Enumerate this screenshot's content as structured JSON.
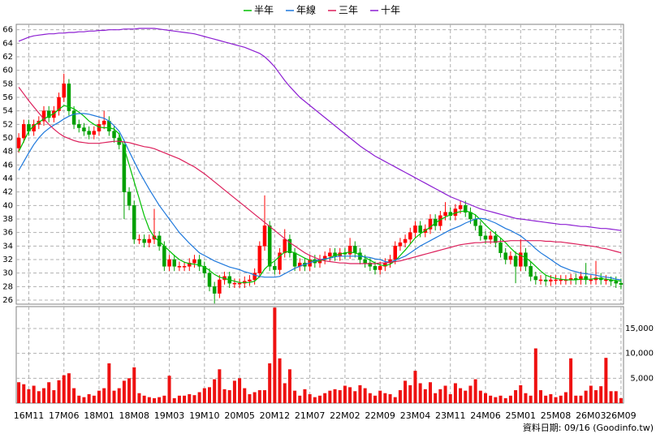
{
  "chart_data": {
    "type": "candlestick",
    "legend_position": "top",
    "grid": true,
    "up_color": "#ff0000",
    "down_color": "#00a000",
    "source": "資料日期: 09/16 (Goodinfo.tw)",
    "categories": [
      null,
      null,
      "16M11",
      null,
      null,
      null,
      null,
      null,
      null,
      "17M06",
      null,
      null,
      null,
      null,
      null,
      null,
      "18M01",
      null,
      null,
      null,
      null,
      null,
      null,
      "18M08",
      null,
      null,
      null,
      null,
      null,
      null,
      "19M03",
      null,
      null,
      null,
      null,
      null,
      null,
      "19M10",
      null,
      null,
      null,
      null,
      null,
      null,
      "20M05",
      null,
      null,
      null,
      null,
      null,
      null,
      "20M12",
      null,
      null,
      null,
      null,
      null,
      null,
      "21M07",
      null,
      null,
      null,
      null,
      null,
      null,
      "22M02",
      null,
      null,
      null,
      null,
      null,
      null,
      "22M09",
      null,
      null,
      null,
      null,
      null,
      null,
      "23M04",
      null,
      null,
      null,
      null,
      null,
      null,
      "23M11",
      null,
      null,
      null,
      null,
      null,
      null,
      "24M06",
      null,
      null,
      null,
      null,
      null,
      null,
      "25M01",
      null,
      null,
      null,
      null,
      null,
      null,
      "25M08",
      null,
      null,
      null,
      null,
      null,
      null,
      "26M03",
      null,
      null,
      null,
      null,
      null,
      "26M09"
    ],
    "open": [
      48.5,
      50,
      52,
      51,
      52,
      52.5,
      54,
      53,
      54,
      56,
      58,
      54,
      52,
      51.5,
      51,
      50.5,
      51,
      52,
      52.5,
      51,
      50,
      49,
      42,
      40,
      35,
      35,
      34.5,
      35,
      35.5,
      34,
      31,
      32,
      31,
      31,
      31,
      31.5,
      32,
      31,
      30,
      28,
      27,
      29,
      29.5,
      28.5,
      28.5,
      28.5,
      28.8,
      29,
      30,
      34,
      37,
      31,
      30.5,
      33,
      35,
      33,
      31,
      31.5,
      31,
      32,
      31.5,
      32,
      32.5,
      33,
      32.5,
      33,
      32.8,
      34,
      33,
      32,
      31.5,
      31,
      30.5,
      31,
      31.5,
      32,
      34,
      34.5,
      35,
      36,
      37,
      36,
      36.5,
      38,
      37,
      38.5,
      39,
      38.5,
      39.5,
      40,
      39,
      38,
      37,
      35.5,
      35,
      35.5,
      34.5,
      33,
      32,
      32.5,
      31,
      33,
      31,
      29.5,
      29,
      29,
      28.8,
      29,
      29,
      29,
      29,
      29.2,
      29,
      29.5,
      29,
      29,
      29.3,
      29,
      29,
      28.8,
      28.5
    ],
    "high": [
      50.7,
      52.7,
      52.7,
      52.7,
      53.2,
      54.7,
      54.7,
      54.7,
      56.7,
      59.5,
      58.7,
      54.7,
      52.7,
      52.2,
      51.7,
      51.7,
      52.7,
      54.0,
      53.2,
      51.7,
      50.7,
      49.7,
      42.7,
      40.7,
      35.7,
      35.7,
      35.7,
      39.5,
      36.2,
      34.7,
      32.7,
      32.7,
      31.7,
      31.7,
      32.2,
      32.7,
      32.7,
      31.7,
      30.7,
      28.7,
      29.7,
      30.2,
      30.2,
      29.2,
      29.2,
      29.5,
      29.7,
      30.7,
      34.7,
      41.5,
      37.7,
      31.7,
      33.7,
      36.5,
      35.7,
      33.7,
      32.2,
      32.2,
      32.7,
      32.7,
      32.7,
      33.2,
      33.7,
      33.7,
      33.7,
      33.7,
      35.2,
      34.7,
      33.7,
      32.7,
      32.2,
      31.7,
      31.7,
      32.2,
      32.7,
      34.7,
      35.2,
      35.7,
      36.7,
      37.7,
      37.7,
      37.2,
      38.7,
      38.7,
      39.2,
      40.5,
      39.7,
      40.2,
      40.7,
      40.7,
      39.7,
      38.7,
      37.7,
      36.2,
      36.2,
      36.2,
      35.2,
      33.7,
      33.2,
      33.2,
      35.0,
      33.7,
      31.7,
      30.2,
      29.7,
      29.7,
      29.7,
      29.7,
      29.7,
      29.7,
      29.9,
      29.9,
      30.2,
      31.5,
      29.7,
      31.8,
      30.0,
      29.7,
      29.5,
      29.5,
      29.2
    ],
    "low": [
      47.8,
      49.3,
      50.3,
      50.3,
      51.3,
      51.8,
      52.3,
      52.3,
      53.3,
      55.3,
      53.3,
      51.3,
      50.8,
      50.3,
      49.8,
      49.8,
      50.3,
      51.3,
      50.3,
      49.3,
      48.3,
      38.0,
      39.3,
      34.3,
      34.3,
      33.8,
      33.8,
      34.3,
      33.3,
      30.3,
      30.3,
      30.3,
      30.3,
      30.3,
      30.3,
      30.8,
      30.3,
      29.3,
      27.3,
      25.5,
      26.3,
      28.3,
      27.8,
      27.8,
      27.8,
      27.8,
      28.1,
      28.3,
      29.3,
      33.3,
      30.3,
      29.8,
      29.8,
      32.3,
      32.3,
      30.3,
      30.3,
      30.3,
      30.3,
      30.8,
      30.8,
      31.3,
      31.8,
      31.8,
      31.8,
      32.1,
      32.1,
      32.3,
      31.3,
      30.8,
      30.3,
      29.8,
      29.8,
      30.3,
      30.8,
      31.3,
      33.3,
      33.8,
      34.3,
      35.3,
      35.3,
      35.3,
      35.8,
      36.3,
      36.3,
      37.8,
      37.8,
      37.8,
      38.8,
      38.3,
      37.3,
      36.3,
      34.8,
      34.3,
      34.3,
      33.8,
      32.3,
      31.3,
      31.3,
      28.5,
      30.3,
      30.3,
      28.8,
      28.3,
      28.3,
      28.1,
      28.1,
      28.3,
      28.3,
      28.3,
      28.3,
      28.3,
      28.3,
      28.3,
      28.3,
      28.3,
      28.3,
      28.3,
      28.1,
      27.8,
      27.6
    ],
    "close": [
      50,
      52,
      51,
      52,
      52.5,
      54,
      53,
      54,
      56,
      58,
      54,
      52,
      51.5,
      51,
      50.5,
      51,
      52,
      52.5,
      51,
      50,
      49,
      42,
      40,
      35,
      35,
      34.5,
      35,
      35.5,
      34,
      31,
      32,
      31,
      31,
      31,
      31.5,
      32,
      31,
      30,
      28,
      27,
      29,
      29.5,
      28.5,
      28.5,
      28.5,
      28.8,
      29,
      30,
      34,
      37,
      31,
      30.5,
      33,
      35,
      33,
      31,
      31.5,
      31,
      32,
      31.5,
      32,
      32.5,
      33,
      32.5,
      33,
      32.8,
      34,
      33,
      32,
      31.5,
      31,
      30.5,
      31,
      31.5,
      32,
      34,
      34.5,
      35,
      36,
      37,
      36,
      36.5,
      38,
      37,
      38.5,
      39,
      38.5,
      39.5,
      40,
      39,
      38,
      37,
      35.5,
      35,
      35.5,
      34.5,
      33,
      32,
      32.5,
      31,
      33,
      31,
      29.5,
      29,
      29,
      28.8,
      29,
      29,
      29,
      29,
      29.2,
      29,
      29.5,
      29,
      29,
      29.3,
      29,
      29,
      28.8,
      28.5,
      28.3
    ],
    "ylim": [
      25.4,
      66.8
    ],
    "yticks": [
      26,
      28,
      30,
      32,
      34,
      36,
      38,
      40,
      42,
      44,
      46,
      48,
      50,
      52,
      54,
      56,
      58,
      60,
      62,
      64,
      66
    ],
    "series": [
      {
        "name": "半年",
        "color": "#00c000",
        "values": [
          48.0,
          49.5,
          51.0,
          51.8,
          52.3,
          52.8,
          53.2,
          53.6,
          54.2,
          54.8,
          54.6,
          54.3,
          53.8,
          53.2,
          52.5,
          52.0,
          51.6,
          51.5,
          51.5,
          51.3,
          50.6,
          48.5,
          46.0,
          43.5,
          41.0,
          38.5,
          36.5,
          35.3,
          34.7,
          34.0,
          33.3,
          32.6,
          32.0,
          31.6,
          31.4,
          31.3,
          31.2,
          30.9,
          30.4,
          29.8,
          29.4,
          29.2,
          29.0,
          28.8,
          28.6,
          28.6,
          28.6,
          28.8,
          29.5,
          30.6,
          31.3,
          31.8,
          32.5,
          33.1,
          33.2,
          33.0,
          32.6,
          32.2,
          31.9,
          31.7,
          31.8,
          32.0,
          32.3,
          32.6,
          32.8,
          33.0,
          33.1,
          33.0,
          32.7,
          32.3,
          31.9,
          31.5,
          31.2,
          31.1,
          31.3,
          31.8,
          32.6,
          33.4,
          34.3,
          35.2,
          35.8,
          36.3,
          36.8,
          37.4,
          37.9,
          38.3,
          38.6,
          38.9,
          39.1,
          39.2,
          39.0,
          38.6,
          37.9,
          37.1,
          36.4,
          35.8,
          35.2,
          34.5,
          33.7,
          33.0,
          32.6,
          32.3,
          31.7,
          31.0,
          30.3,
          29.7,
          29.4,
          29.2,
          29.1,
          29.0,
          29.0,
          29.0,
          29.1,
          29.1,
          29.1,
          29.2,
          29.2,
          29.1,
          29.0,
          28.9,
          28.8
        ]
      },
      {
        "name": "年線",
        "color": "#1e78dc",
        "values": [
          45.2,
          46.5,
          47.8,
          49.0,
          50.0,
          50.8,
          51.4,
          51.9,
          52.3,
          52.8,
          53.2,
          53.5,
          53.6,
          53.6,
          53.5,
          53.3,
          53.1,
          52.9,
          52.5,
          51.8,
          51.0,
          49.6,
          48.0,
          46.5,
          45.0,
          43.7,
          42.4,
          41.2,
          40.0,
          39.0,
          38.0,
          37.0,
          36.0,
          35.2,
          34.4,
          33.7,
          33.0,
          32.6,
          32.2,
          31.8,
          31.5,
          31.2,
          30.9,
          30.7,
          30.5,
          30.2,
          30.0,
          29.7,
          29.5,
          29.4,
          29.4,
          29.4,
          29.5,
          29.9,
          30.3,
          30.7,
          31.0,
          31.3,
          31.5,
          31.8,
          32.0,
          32.1,
          32.2,
          32.4,
          32.5,
          32.5,
          32.5,
          32.5,
          32.5,
          32.4,
          32.3,
          32.1,
          32.0,
          31.7,
          31.6,
          31.9,
          32.2,
          32.5,
          33.0,
          33.5,
          34.0,
          34.4,
          34.8,
          35.2,
          35.6,
          36.0,
          36.4,
          36.7,
          37.0,
          37.4,
          37.7,
          38.0,
          38.1,
          38.0,
          37.7,
          37.4,
          37.0,
          36.6,
          36.3,
          35.9,
          35.5,
          34.9,
          34.3,
          33.6,
          33.0,
          32.5,
          32.0,
          31.5,
          31.0,
          30.7,
          30.4,
          30.2,
          30.0,
          29.9,
          29.8,
          29.7,
          29.5,
          29.4,
          29.3,
          29.1,
          29.0
        ]
      },
      {
        "name": "三年",
        "color": "#dc1e5a",
        "values": [
          57.5,
          56.5,
          55.5,
          54.6,
          53.7,
          52.8,
          52.0,
          51.3,
          50.7,
          50.2,
          49.9,
          49.6,
          49.4,
          49.3,
          49.2,
          49.2,
          49.2,
          49.3,
          49.4,
          49.5,
          49.5,
          49.4,
          49.3,
          49.1,
          48.9,
          48.7,
          48.6,
          48.4,
          48.1,
          47.8,
          47.5,
          47.2,
          46.9,
          46.5,
          46.1,
          45.7,
          45.2,
          44.7,
          44.1,
          43.5,
          42.9,
          42.3,
          41.7,
          41.1,
          40.5,
          39.9,
          39.3,
          38.7,
          38.1,
          37.5,
          36.9,
          36.3,
          35.7,
          35.1,
          34.5,
          34.0,
          33.5,
          33.0,
          32.6,
          32.3,
          32.0,
          31.8,
          31.7,
          31.6,
          31.5,
          31.5,
          31.4,
          31.4,
          31.4,
          31.4,
          31.4,
          31.4,
          31.5,
          31.5,
          31.6,
          31.7,
          31.8,
          32.0,
          32.2,
          32.4,
          32.6,
          32.8,
          33.0,
          33.2,
          33.4,
          33.6,
          33.8,
          34.0,
          34.2,
          34.3,
          34.4,
          34.5,
          34.5,
          34.6,
          34.6,
          34.6,
          34.7,
          34.7,
          34.8,
          34.8,
          34.8,
          34.8,
          34.8,
          34.8,
          34.8,
          34.7,
          34.7,
          34.6,
          34.6,
          34.5,
          34.4,
          34.3,
          34.2,
          34.1,
          34.0,
          33.9,
          33.7,
          33.6,
          33.4,
          33.2,
          33.0
        ]
      },
      {
        "name": "十年",
        "color": "#8c1ed2",
        "values": [
          64.3,
          64.6,
          64.9,
          65.1,
          65.2,
          65.3,
          65.4,
          65.4,
          65.5,
          65.5,
          65.6,
          65.6,
          65.7,
          65.7,
          65.8,
          65.8,
          65.9,
          65.9,
          66.0,
          66.0,
          66.0,
          66.1,
          66.1,
          66.1,
          66.2,
          66.2,
          66.2,
          66.2,
          66.1,
          66.0,
          65.9,
          65.8,
          65.7,
          65.6,
          65.5,
          65.4,
          65.2,
          65.0,
          64.8,
          64.6,
          64.4,
          64.2,
          64.0,
          63.8,
          63.6,
          63.4,
          63.1,
          62.8,
          62.5,
          62.0,
          61.3,
          60.5,
          59.5,
          58.5,
          57.6,
          56.8,
          56.0,
          55.4,
          54.8,
          54.2,
          53.6,
          53.0,
          52.4,
          51.8,
          51.2,
          50.6,
          50.0,
          49.4,
          48.8,
          48.3,
          47.8,
          47.3,
          46.9,
          46.5,
          46.1,
          45.7,
          45.3,
          44.9,
          44.5,
          44.1,
          43.7,
          43.3,
          42.9,
          42.5,
          42.1,
          41.7,
          41.3,
          41.0,
          40.7,
          40.4,
          40.1,
          39.8,
          39.5,
          39.3,
          39.1,
          38.9,
          38.7,
          38.5,
          38.3,
          38.1,
          38.0,
          37.9,
          37.8,
          37.7,
          37.6,
          37.5,
          37.4,
          37.3,
          37.2,
          37.2,
          37.1,
          37.0,
          36.9,
          36.9,
          36.8,
          36.7,
          36.6,
          36.6,
          36.5,
          36.4,
          36.3
        ]
      }
    ],
    "volume": {
      "color": "#ee1111",
      "values": [
        4200,
        3800,
        2800,
        3500,
        2400,
        3000,
        4200,
        2600,
        4600,
        5600,
        6000,
        3000,
        1500,
        1200,
        1800,
        1500,
        2500,
        3000,
        8000,
        2500,
        3000,
        4500,
        5000,
        7200,
        2000,
        1500,
        1200,
        1000,
        1200,
        1500,
        5500,
        1000,
        1500,
        1500,
        1800,
        1600,
        2200,
        3000,
        3200,
        4800,
        6800,
        2800,
        2600,
        4500,
        5000,
        3000,
        1800,
        2200,
        2600,
        2600,
        8000,
        19200,
        9000,
        4000,
        6800,
        2500,
        1500,
        2800,
        1800,
        1200,
        1500,
        2000,
        2500,
        2800,
        2600,
        3500,
        3200,
        2400,
        3600,
        3000,
        2000,
        1500,
        2500,
        2000,
        1800,
        1200,
        2600,
        4500,
        3600,
        6500,
        4000,
        2800,
        4200,
        2000,
        2800,
        3500,
        1800,
        4000,
        3000,
        2500,
        3500,
        4800,
        2500,
        2000,
        1500,
        1200,
        1500,
        1000,
        1500,
        2600,
        3600,
        2000,
        1500,
        11000,
        2600,
        1500,
        1800,
        1200,
        1500,
        2200,
        9000,
        1500,
        1500,
        2500,
        3500,
        2600,
        3400,
        9100,
        2400,
        2400,
        1000
      ],
      "ylim": [
        0,
        19400
      ],
      "yticks": [
        {
          "value": 5000,
          "label": "5,000"
        },
        {
          "value": 10000,
          "label": "10,000"
        },
        {
          "value": 15000,
          "label": "15,000"
        }
      ]
    }
  }
}
